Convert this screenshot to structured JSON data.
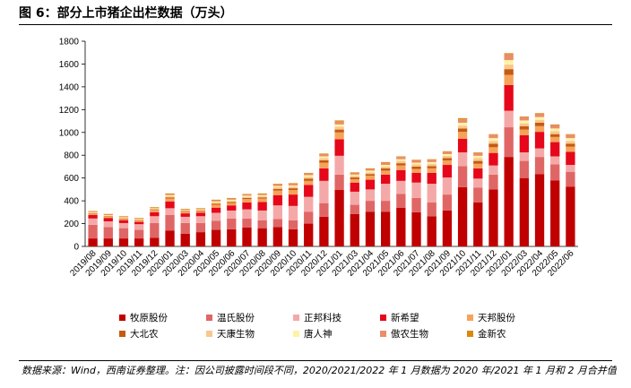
{
  "figure": {
    "title": "图 6：部分上市猪企出栏数据（万头）",
    "source_note": "数据来源：Wind，西南证券整理。注：因公司披露时间段不同，2020/2021/2022 年 1 月数据为 2020 年/2021 年 1 月和 2 月合并值"
  },
  "chart_data": {
    "type": "bar",
    "stacked": true,
    "title": "",
    "xlabel": "",
    "ylabel": "",
    "ylim": [
      0,
      1800
    ],
    "yticks": [
      0,
      200,
      400,
      600,
      800,
      1000,
      1200,
      1400,
      1600,
      1800
    ],
    "legend_position": "bottom",
    "categories": [
      "2019/08",
      "2019/09",
      "2019/10",
      "2019/11",
      "2019/12",
      "2020/01",
      "2020/03",
      "2020/04",
      "2020/05",
      "2020/06",
      "2020/07",
      "2020/08",
      "2020/09",
      "2020/10",
      "2020/11",
      "2020/12",
      "2021/01",
      "2021/03",
      "2021/04",
      "2021/05",
      "2021/06",
      "2021/07",
      "2021/08",
      "2021/09",
      "2021/10",
      "2021/11",
      "2021/12",
      "2022/01",
      "2022/03",
      "2022/04",
      "2022/05",
      "2022/06"
    ],
    "series": [
      {
        "name": "牧原股份",
        "color": "#c00000",
        "values": [
          70,
          70,
          70,
          70,
          75,
          140,
          110,
          125,
          145,
          150,
          165,
          160,
          170,
          150,
          200,
          260,
          495,
          285,
          305,
          305,
          340,
          300,
          265,
          315,
          520,
          385,
          500,
          785,
          600,
          635,
          580,
          525
        ]
      },
      {
        "name": "温氏股份",
        "color": "#e06666",
        "values": [
          120,
          100,
          90,
          75,
          130,
          135,
          95,
          80,
          80,
          95,
          80,
          70,
          70,
          80,
          105,
          120,
          135,
          80,
          95,
          95,
          120,
          125,
          120,
          140,
          185,
          130,
          130,
          260,
          150,
          150,
          140,
          130
        ]
      },
      {
        "name": "正邦科技",
        "color": "#f4a9a8",
        "values": [
          55,
          50,
          45,
          50,
          60,
          60,
          55,
          60,
          70,
          70,
          80,
          85,
          120,
          125,
          130,
          195,
          165,
          115,
          100,
          150,
          115,
          135,
          165,
          150,
          120,
          80,
          80,
          145,
          75,
          75,
          70,
          60
        ]
      },
      {
        "name": "新希望",
        "color": "#e6071b",
        "values": [
          30,
          30,
          25,
          20,
          35,
          60,
          30,
          30,
          45,
          45,
          60,
          75,
          90,
          100,
          105,
          110,
          145,
          80,
          85,
          80,
          95,
          85,
          95,
          110,
          120,
          90,
          110,
          225,
          150,
          145,
          125,
          115
        ]
      },
      {
        "name": "天邦股份",
        "color": "#f6a35a",
        "values": [
          10,
          10,
          10,
          10,
          20,
          25,
          15,
          15,
          25,
          20,
          30,
          30,
          40,
          40,
          35,
          50,
          60,
          30,
          35,
          35,
          40,
          35,
          40,
          40,
          60,
          40,
          50,
          90,
          50,
          50,
          45,
          45
        ]
      },
      {
        "name": "大北农",
        "color": "#c55a11",
        "values": [
          5,
          5,
          5,
          5,
          5,
          10,
          5,
          5,
          10,
          10,
          10,
          10,
          15,
          15,
          20,
          20,
          25,
          15,
          15,
          20,
          20,
          20,
          20,
          20,
          30,
          25,
          30,
          50,
          30,
          30,
          25,
          25
        ]
      },
      {
        "name": "天康生物",
        "color": "#f9c78f",
        "values": [
          5,
          5,
          5,
          5,
          5,
          10,
          5,
          5,
          10,
          10,
          10,
          10,
          15,
          15,
          15,
          20,
          25,
          15,
          15,
          15,
          20,
          20,
          20,
          20,
          25,
          25,
          25,
          40,
          25,
          25,
          25,
          25
        ]
      },
      {
        "name": "唐人神",
        "color": "#fff2a8",
        "values": [
          5,
          5,
          5,
          5,
          5,
          10,
          5,
          5,
          10,
          10,
          10,
          10,
          10,
          10,
          15,
          15,
          20,
          10,
          15,
          15,
          15,
          15,
          15,
          15,
          25,
          20,
          25,
          40,
          25,
          25,
          25,
          25
        ]
      },
      {
        "name": "傲农生物",
        "color": "#e98d6b",
        "values": [
          5,
          5,
          5,
          5,
          5,
          10,
          5,
          5,
          10,
          10,
          10,
          10,
          15,
          15,
          15,
          20,
          25,
          15,
          15,
          20,
          20,
          20,
          20,
          20,
          30,
          25,
          30,
          50,
          30,
          30,
          30,
          30
        ]
      },
      {
        "name": "金新农",
        "color": "#d88a0e",
        "values": [
          5,
          5,
          5,
          5,
          5,
          5,
          5,
          5,
          5,
          5,
          5,
          5,
          5,
          5,
          5,
          5,
          10,
          5,
          5,
          5,
          5,
          5,
          5,
          5,
          10,
          5,
          5,
          10,
          5,
          5,
          5,
          5
        ]
      }
    ]
  }
}
